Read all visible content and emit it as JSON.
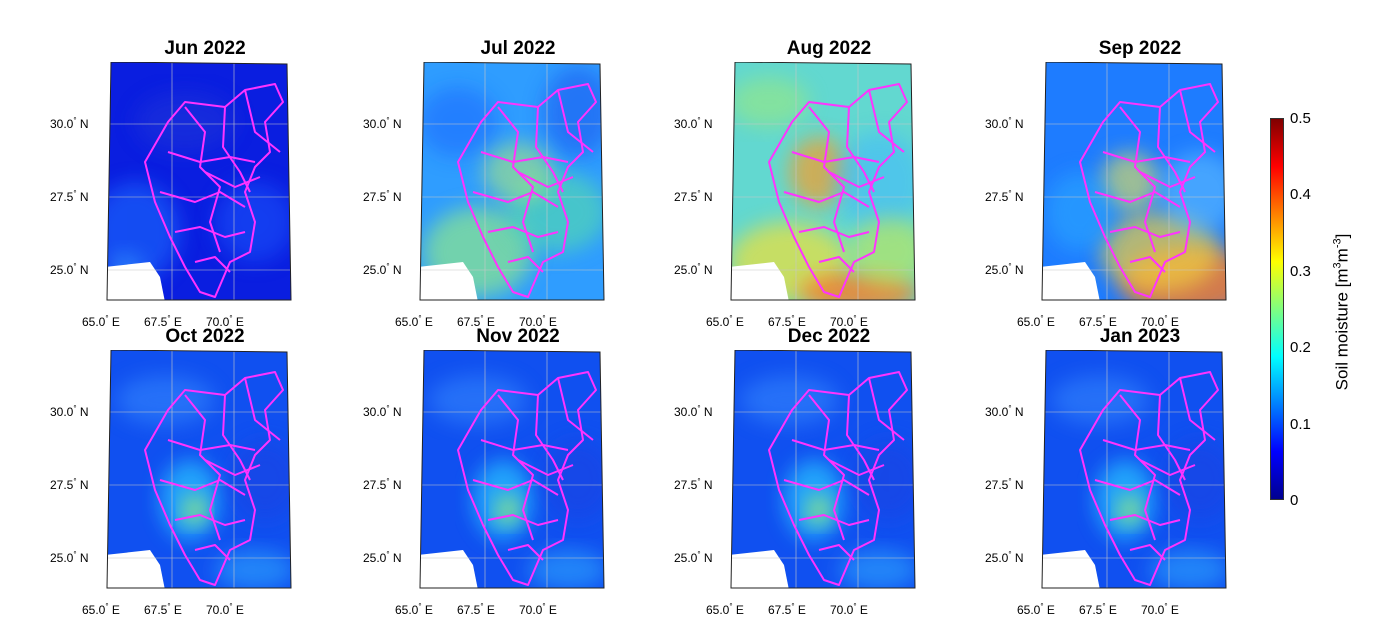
{
  "panels": [
    {
      "title": "Jun 2022",
      "state": "dry"
    },
    {
      "title": "Jul 2022",
      "state": "moist"
    },
    {
      "title": "Aug 2022",
      "state": "wet"
    },
    {
      "title": "Sep 2022",
      "state": "wet_east"
    },
    {
      "title": "Oct 2022",
      "state": "drying"
    },
    {
      "title": "Nov 2022",
      "state": "drying"
    },
    {
      "title": "Dec 2022",
      "state": "drying"
    },
    {
      "title": "Jan 2023",
      "state": "drying"
    }
  ],
  "axes": {
    "lat_ticks": [
      "30.0",
      "27.5",
      "25.0"
    ],
    "lat_suffix": "N",
    "lon_ticks": [
      "65.0",
      "67.5",
      "70.0"
    ],
    "lon_suffix": "E",
    "degree": "°"
  },
  "colorbar": {
    "label_main": "Soil moisture [m",
    "label_sup1": "3",
    "label_mid": "m",
    "label_sup2": "-3",
    "label_end": "]",
    "ticks": [
      "0.5",
      "0.4",
      "0.3",
      "0.2",
      "0.1",
      "0"
    ],
    "colormap": [
      "#00008f",
      "#0000ff",
      "#0080ff",
      "#00ffff",
      "#80ff80",
      "#ffff00",
      "#ff8000",
      "#ff0000",
      "#800000"
    ]
  },
  "colors": {
    "boundary": "#ff33ff",
    "grid": "#c8c8c8"
  }
}
